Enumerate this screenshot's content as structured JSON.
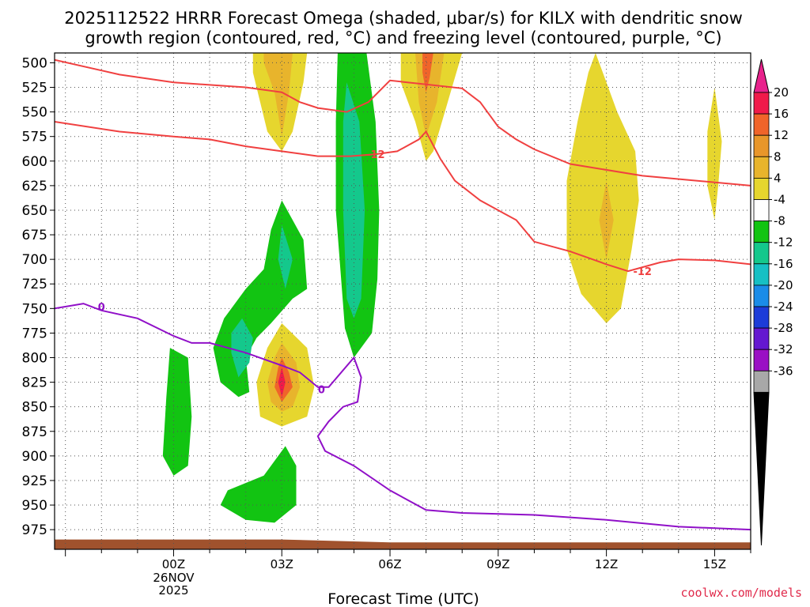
{
  "chart_data": {
    "type": "time-height cross section",
    "title_line1": "2025112522 HRRR Forecast Omega (shaded, μbar/s) for KILX with dendritic snow",
    "title_line2": "growth region (contoured, red, °C) and freezing level (contoured, purple, °C)",
    "xlabel": "Forecast Time (UTC)",
    "credit": "coolwx.com/models",
    "x_domain_hours": [
      -3.3,
      16.0
    ],
    "y_domain_mb": [
      490,
      995
    ],
    "y_ticks": [
      500,
      525,
      550,
      575,
      600,
      625,
      650,
      675,
      700,
      725,
      750,
      775,
      800,
      825,
      850,
      875,
      900,
      925,
      950,
      975
    ],
    "x_ticks": [
      {
        "hour": 0,
        "label": "00Z",
        "date1": "26NOV",
        "date2": "2025"
      },
      {
        "hour": 3,
        "label": "03Z"
      },
      {
        "hour": 6,
        "label": "06Z"
      },
      {
        "hour": 9,
        "label": "09Z"
      },
      {
        "hour": 12,
        "label": "12Z"
      },
      {
        "hour": 15,
        "label": "15Z"
      }
    ],
    "colorbar": {
      "labels": [
        "20",
        "16",
        "12",
        "8",
        "4",
        "-4",
        "-8",
        "-12",
        "-16",
        "-20",
        "-24",
        "-28",
        "-32",
        "-36"
      ],
      "colors": [
        "#f01a4a",
        "#f0642a",
        "#e8962a",
        "#e8b42c",
        "#e6d62e",
        "#ffffff",
        "#12c412",
        "#14c88c",
        "#16c0c4",
        "#1a8ce8",
        "#1c3cd8",
        "#6418d0",
        "#9a10c4",
        "#a8a8a8"
      ],
      "top_arrow_color": "#e8228c",
      "bottom_arrow_color": "#000000"
    },
    "omega_regions": [
      {
        "color": "#e6d62e",
        "points": [
          [
            2.2,
            490
          ],
          [
            3.7,
            490
          ],
          [
            3.6,
            520
          ],
          [
            3.3,
            570
          ],
          [
            3.0,
            590
          ],
          [
            2.6,
            570
          ],
          [
            2.2,
            510
          ]
        ]
      },
      {
        "color": "#e8b42c",
        "points": [
          [
            2.5,
            490
          ],
          [
            3.3,
            490
          ],
          [
            3.2,
            530
          ],
          [
            3.0,
            575
          ],
          [
            2.8,
            530
          ],
          [
            2.5,
            500
          ]
        ]
      },
      {
        "color": "#e6d62e",
        "points": [
          [
            6.3,
            490
          ],
          [
            8.0,
            490
          ],
          [
            7.6,
            540
          ],
          [
            7.2,
            590
          ],
          [
            7.0,
            600
          ],
          [
            6.7,
            560
          ],
          [
            6.3,
            520
          ]
        ]
      },
      {
        "color": "#e8b42c",
        "points": [
          [
            6.7,
            490
          ],
          [
            7.5,
            490
          ],
          [
            7.3,
            540
          ],
          [
            7.0,
            575
          ],
          [
            6.8,
            540
          ]
        ]
      },
      {
        "color": "#f0642a",
        "points": [
          [
            6.9,
            490
          ],
          [
            7.2,
            490
          ],
          [
            7.1,
            515
          ],
          [
            7.0,
            530
          ],
          [
            6.9,
            510
          ]
        ]
      },
      {
        "color": "#e6d62e",
        "points": [
          [
            11.7,
            490
          ],
          [
            11.9,
            510
          ],
          [
            12.3,
            550
          ],
          [
            12.8,
            590
          ],
          [
            12.9,
            640
          ],
          [
            12.7,
            690
          ],
          [
            12.4,
            750
          ],
          [
            12.0,
            765
          ],
          [
            11.3,
            735
          ],
          [
            10.9,
            690
          ],
          [
            10.9,
            620
          ],
          [
            11.2,
            560
          ],
          [
            11.5,
            510
          ]
        ]
      },
      {
        "color": "#e8b42c",
        "points": [
          [
            12.0,
            620
          ],
          [
            12.2,
            660
          ],
          [
            12.0,
            700
          ],
          [
            11.8,
            660
          ]
        ]
      },
      {
        "color": "#e6d62e",
        "points": [
          [
            15.0,
            525
          ],
          [
            15.2,
            580
          ],
          [
            15.1,
            625
          ],
          [
            15.0,
            660
          ],
          [
            14.8,
            625
          ],
          [
            14.8,
            570
          ]
        ]
      },
      {
        "color": "#e6d62e",
        "points": [
          [
            3.0,
            765
          ],
          [
            3.7,
            790
          ],
          [
            3.9,
            830
          ],
          [
            3.7,
            860
          ],
          [
            3.0,
            870
          ],
          [
            2.4,
            860
          ],
          [
            2.3,
            825
          ],
          [
            2.6,
            790
          ]
        ]
      },
      {
        "color": "#e8b42c",
        "points": [
          [
            3.0,
            785
          ],
          [
            3.4,
            805
          ],
          [
            3.5,
            830
          ],
          [
            3.3,
            850
          ],
          [
            3.0,
            855
          ],
          [
            2.7,
            845
          ],
          [
            2.6,
            825
          ],
          [
            2.8,
            800
          ]
        ]
      },
      {
        "color": "#f0642a",
        "points": [
          [
            3.0,
            800
          ],
          [
            3.2,
            815
          ],
          [
            3.3,
            830
          ],
          [
            3.0,
            845
          ],
          [
            2.8,
            830
          ],
          [
            2.9,
            810
          ]
        ]
      },
      {
        "color": "#f01a4a",
        "points": [
          [
            3.0,
            810
          ],
          [
            3.1,
            825
          ],
          [
            3.0,
            840
          ],
          [
            2.9,
            825
          ]
        ]
      },
      {
        "color": "#12c412",
        "points": [
          [
            4.55,
            490
          ],
          [
            5.35,
            490
          ],
          [
            5.6,
            560
          ],
          [
            5.7,
            650
          ],
          [
            5.65,
            720
          ],
          [
            5.5,
            775
          ],
          [
            5.0,
            800
          ],
          [
            4.75,
            770
          ],
          [
            4.5,
            650
          ],
          [
            4.5,
            560
          ]
        ]
      },
      {
        "color": "#14c88c",
        "points": [
          [
            4.8,
            520
          ],
          [
            5.15,
            560
          ],
          [
            5.3,
            650
          ],
          [
            5.2,
            740
          ],
          [
            5.0,
            760
          ],
          [
            4.8,
            740
          ],
          [
            4.7,
            650
          ],
          [
            4.7,
            560
          ]
        ]
      },
      {
        "color": "#12c412",
        "points": [
          [
            3.0,
            640
          ],
          [
            3.6,
            680
          ],
          [
            3.7,
            730
          ],
          [
            3.3,
            740
          ],
          [
            2.7,
            765
          ],
          [
            2.3,
            780
          ],
          [
            2.0,
            800
          ],
          [
            2.1,
            835
          ],
          [
            1.8,
            840
          ],
          [
            1.3,
            825
          ],
          [
            1.1,
            790
          ],
          [
            1.4,
            760
          ],
          [
            2.0,
            730
          ],
          [
            2.5,
            710
          ],
          [
            2.7,
            670
          ]
        ]
      },
      {
        "color": "#14c88c",
        "points": [
          [
            3.0,
            665
          ],
          [
            3.3,
            700
          ],
          [
            3.1,
            730
          ],
          [
            2.9,
            700
          ]
        ]
      },
      {
        "color": "#14c88c",
        "points": [
          [
            1.9,
            760
          ],
          [
            2.2,
            780
          ],
          [
            2.1,
            805
          ],
          [
            1.8,
            820
          ],
          [
            1.6,
            795
          ],
          [
            1.6,
            775
          ]
        ]
      },
      {
        "color": "#12c412",
        "points": [
          [
            -0.1,
            790
          ],
          [
            0.4,
            800
          ],
          [
            0.5,
            860
          ],
          [
            0.4,
            910
          ],
          [
            0.0,
            920
          ],
          [
            -0.3,
            900
          ],
          [
            -0.2,
            840
          ]
        ]
      },
      {
        "color": "#12c412",
        "points": [
          [
            3.1,
            890
          ],
          [
            3.4,
            910
          ],
          [
            3.4,
            950
          ],
          [
            2.8,
            968
          ],
          [
            2.0,
            965
          ],
          [
            1.3,
            950
          ],
          [
            1.5,
            935
          ],
          [
            2.5,
            920
          ]
        ]
      }
    ],
    "temperature_contours": [
      {
        "label": "",
        "points": [
          [
            -3.3,
            497
          ],
          [
            -1.5,
            512
          ],
          [
            0.0,
            520
          ],
          [
            2.0,
            525
          ],
          [
            3.0,
            530
          ],
          [
            3.5,
            540
          ],
          [
            4.0,
            546
          ],
          [
            4.8,
            550
          ],
          [
            5.4,
            540
          ],
          [
            6.0,
            518
          ],
          [
            7.0,
            522
          ],
          [
            8.0,
            526
          ],
          [
            8.5,
            540
          ],
          [
            9.0,
            565
          ],
          [
            9.5,
            578
          ],
          [
            10.0,
            588
          ],
          [
            11.0,
            603
          ],
          [
            13.0,
            615
          ],
          [
            16.0,
            625
          ]
        ]
      },
      {
        "label": "-12",
        "points": [
          [
            -3.3,
            560
          ],
          [
            -1.5,
            570
          ],
          [
            0.0,
            575
          ],
          [
            1.0,
            578
          ],
          [
            2.0,
            585
          ],
          [
            3.0,
            590
          ],
          [
            4.0,
            595
          ],
          [
            4.9,
            595
          ],
          [
            5.6,
            593
          ],
          [
            6.2,
            590
          ],
          [
            6.8,
            578
          ],
          [
            7.0,
            570
          ],
          [
            7.4,
            598
          ],
          [
            7.8,
            620
          ],
          [
            8.5,
            640
          ],
          [
            9.0,
            650
          ],
          [
            9.5,
            660
          ],
          [
            10.0,
            682
          ],
          [
            11.0,
            692
          ],
          [
            12.0,
            705
          ],
          [
            12.6,
            712
          ],
          [
            13.5,
            703
          ],
          [
            14.0,
            700
          ],
          [
            15.0,
            701
          ],
          [
            16.0,
            705
          ]
        ],
        "label_at": [
          5.6,
          593
        ],
        "label2": "-12",
        "label2_at": [
          13.0,
          712
        ]
      }
    ],
    "freezing_level": {
      "label": "0",
      "points": [
        [
          -3.3,
          750
        ],
        [
          -2.5,
          745
        ],
        [
          -2.0,
          752
        ],
        [
          -1.0,
          760
        ],
        [
          0.0,
          778
        ],
        [
          0.5,
          785
        ],
        [
          1.0,
          785
        ],
        [
          2.0,
          795
        ],
        [
          3.0,
          808
        ],
        [
          3.5,
          815
        ],
        [
          4.0,
          830
        ],
        [
          4.3,
          830
        ],
        [
          5.0,
          800
        ],
        [
          5.2,
          820
        ],
        [
          5.1,
          845
        ],
        [
          4.7,
          850
        ],
        [
          4.3,
          865
        ],
        [
          4.0,
          880
        ],
        [
          4.2,
          895
        ],
        [
          5.0,
          910
        ],
        [
          6.0,
          935
        ],
        [
          7.0,
          955
        ],
        [
          8.0,
          958
        ],
        [
          10.0,
          960
        ],
        [
          12.0,
          965
        ],
        [
          14.0,
          972
        ],
        [
          16.0,
          975
        ]
      ],
      "label_at": [
        -2.0,
        748
      ],
      "label2_at": [
        4.1,
        832
      ]
    },
    "terrain": {
      "top_mb_left": 985,
      "top_mb_right": 988
    }
  }
}
